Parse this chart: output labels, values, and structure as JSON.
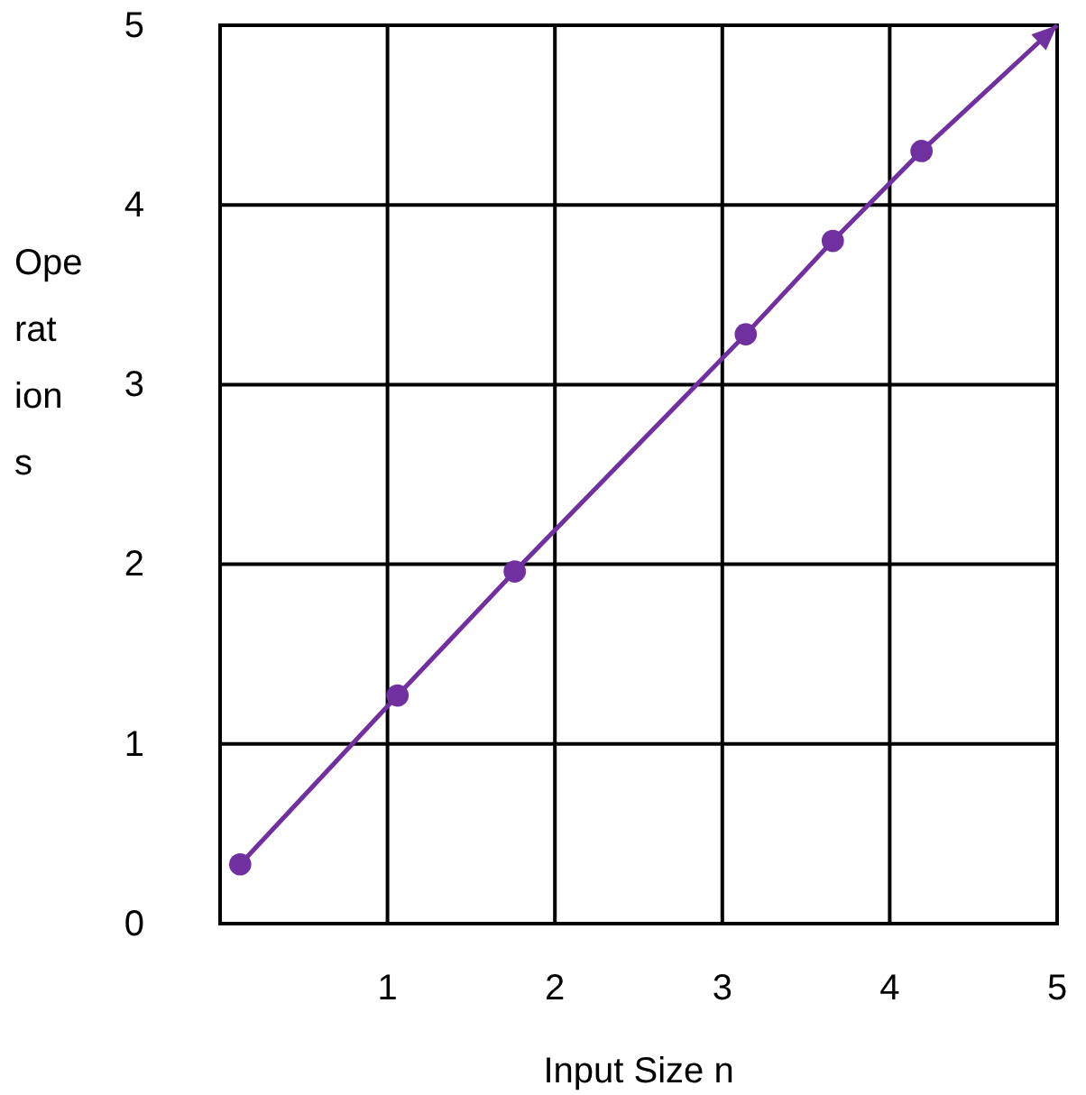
{
  "chart_data": {
    "type": "line",
    "xlabel": "Input Size n",
    "ylabel": "Operations",
    "xlim": [
      0,
      5
    ],
    "ylim": [
      0,
      5
    ],
    "xticks": [
      1,
      2,
      3,
      4,
      5
    ],
    "yticks": [
      0,
      1,
      2,
      3,
      4,
      5
    ],
    "grid": true,
    "marker": "circle",
    "series": [
      {
        "color": "#7030a0",
        "x": [
          0.12,
          1.06,
          1.76,
          3.14,
          3.66,
          4.19
        ],
        "values": [
          0.33,
          1.27,
          1.96,
          3.28,
          3.8,
          4.3
        ]
      }
    ]
  }
}
